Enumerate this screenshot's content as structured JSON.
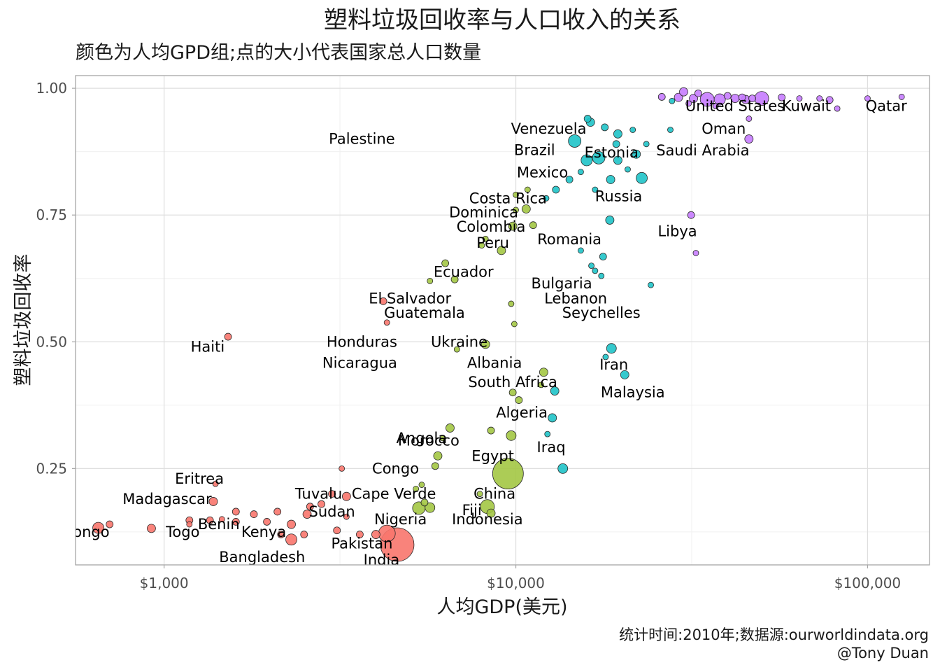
{
  "chart_data": {
    "type": "scatter",
    "title": "塑料垃圾回收率与人口收入的关系",
    "subtitle": "颜色为人均GPD组;点的大小代表国家总人口数量",
    "xlabel": "人均GDP(美元)",
    "ylabel": "塑料垃圾回收率",
    "x_scale": "log10",
    "xlim": [
      560,
      150000
    ],
    "ylim": [
      0.06,
      1.025
    ],
    "x_ticks": [
      {
        "value": 1000,
        "label": "$1,000"
      },
      {
        "value": 10000,
        "label": "$10,000"
      },
      {
        "value": 100000,
        "label": "$100,000"
      }
    ],
    "y_ticks": [
      {
        "value": 0.25,
        "label": "0.25"
      },
      {
        "value": 0.5,
        "label": "0.50"
      },
      {
        "value": 0.75,
        "label": "0.75"
      },
      {
        "value": 1.0,
        "label": "1.00"
      }
    ],
    "grid": true,
    "legend": "none",
    "group_colors": {
      "low": "#f8766d",
      "lower-middle": "#a3c644",
      "upper-middle": "#1fc3c8",
      "high": "#c77cff"
    },
    "labels": [
      {
        "text": "Qatar",
        "x": 113000,
        "y": 0.965
      },
      {
        "text": "Kuwait",
        "x": 67000,
        "y": 0.965
      },
      {
        "text": "United States",
        "x": 42000,
        "y": 0.965
      },
      {
        "text": "Oman",
        "x": 39000,
        "y": 0.92
      },
      {
        "text": "Saudi Arabia",
        "x": 34000,
        "y": 0.877
      },
      {
        "text": "Venezuela",
        "x": 12400,
        "y": 0.92
      },
      {
        "text": "Palestine",
        "x": 3650,
        "y": 0.9
      },
      {
        "text": "Brazil",
        "x": 11300,
        "y": 0.878
      },
      {
        "text": "Estonia",
        "x": 18700,
        "y": 0.873
      },
      {
        "text": "Mexico",
        "x": 11900,
        "y": 0.834
      },
      {
        "text": "Russia",
        "x": 19600,
        "y": 0.787
      },
      {
        "text": "Costa Rica",
        "x": 9500,
        "y": 0.783
      },
      {
        "text": "Dominica",
        "x": 8100,
        "y": 0.755
      },
      {
        "text": "Colombia",
        "x": 8500,
        "y": 0.727
      },
      {
        "text": "Libya",
        "x": 28800,
        "y": 0.718
      },
      {
        "text": "Romania",
        "x": 14200,
        "y": 0.702
      },
      {
        "text": "Peru",
        "x": 8600,
        "y": 0.695
      },
      {
        "text": "Ecuador",
        "x": 7100,
        "y": 0.638
      },
      {
        "text": "Bulgaria",
        "x": 13500,
        "y": 0.615
      },
      {
        "text": "El Salvador",
        "x": 5000,
        "y": 0.585
      },
      {
        "text": "Lebanon",
        "x": 14800,
        "y": 0.585
      },
      {
        "text": "Guatemala",
        "x": 5500,
        "y": 0.557
      },
      {
        "text": "Seychelles",
        "x": 17500,
        "y": 0.557
      },
      {
        "text": "Honduras",
        "x": 3650,
        "y": 0.5
      },
      {
        "text": "Nicaragua",
        "x": 3600,
        "y": 0.458
      },
      {
        "text": "Albania",
        "x": 8700,
        "y": 0.458
      },
      {
        "text": "Haiti",
        "x": 1330,
        "y": 0.49
      },
      {
        "text": "Ukraine",
        "x": 6900,
        "y": 0.5
      },
      {
        "text": "Iran",
        "x": 19000,
        "y": 0.455
      },
      {
        "text": "South Africa",
        "x": 9800,
        "y": 0.42
      },
      {
        "text": "Malaysia",
        "x": 21500,
        "y": 0.4
      },
      {
        "text": "Algeria",
        "x": 10400,
        "y": 0.36
      },
      {
        "text": "Iraq",
        "x": 12600,
        "y": 0.292
      },
      {
        "text": "Morocco",
        "x": 5650,
        "y": 0.305
      },
      {
        "text": "Egypt",
        "x": 8600,
        "y": 0.275
      },
      {
        "text": "Angola",
        "x": 5400,
        "y": 0.31
      },
      {
        "text": "Tuvalu",
        "x": 2750,
        "y": 0.2
      },
      {
        "text": "Cape Verde",
        "x": 4500,
        "y": 0.2
      },
      {
        "text": "China",
        "x": 8700,
        "y": 0.2
      },
      {
        "text": "Eritrea",
        "x": 1260,
        "y": 0.23
      },
      {
        "text": "Congo",
        "x": 4550,
        "y": 0.25
      },
      {
        "text": "Fiji",
        "x": 7500,
        "y": 0.168
      },
      {
        "text": "Madagascar",
        "x": 1020,
        "y": 0.19
      },
      {
        "text": "Sudan",
        "x": 3000,
        "y": 0.165
      },
      {
        "text": "Nigeria",
        "x": 4700,
        "y": 0.15
      },
      {
        "text": "Indonesia",
        "x": 8300,
        "y": 0.15
      },
      {
        "text": "Benin",
        "x": 1430,
        "y": 0.14
      },
      {
        "text": "Kenya",
        "x": 1920,
        "y": 0.125
      },
      {
        "text": "Congo",
        "x": 600,
        "y": 0.125
      },
      {
        "text": "Togo",
        "x": 1130,
        "y": 0.125
      },
      {
        "text": "Pakistan",
        "x": 3650,
        "y": 0.102
      },
      {
        "text": "Bangladesh",
        "x": 1900,
        "y": 0.075
      },
      {
        "text": "India",
        "x": 4150,
        "y": 0.07
      }
    ],
    "series": [
      {
        "group": "low",
        "points": [
          [
            4600,
            0.1,
            24
          ],
          [
            4300,
            0.122,
            12
          ],
          [
            4000,
            0.12,
            6
          ],
          [
            650,
            0.133,
            8
          ],
          [
            700,
            0.14,
            5
          ],
          [
            920,
            0.132,
            6
          ],
          [
            1180,
            0.148,
            5
          ],
          [
            1180,
            0.14,
            4
          ],
          [
            1350,
            0.148,
            5
          ],
          [
            1460,
            0.15,
            4
          ],
          [
            1600,
            0.145,
            5
          ],
          [
            1380,
            0.185,
            6
          ],
          [
            1400,
            0.22,
            4
          ],
          [
            1600,
            0.165,
            5
          ],
          [
            1800,
            0.16,
            5
          ],
          [
            2100,
            0.165,
            5
          ],
          [
            2300,
            0.14,
            6
          ],
          [
            2300,
            0.11,
            8
          ],
          [
            2500,
            0.12,
            5
          ],
          [
            2150,
            0.12,
            5
          ],
          [
            1960,
            0.145,
            5
          ],
          [
            2550,
            0.16,
            6
          ],
          [
            2600,
            0.175,
            5
          ],
          [
            2800,
            0.18,
            5
          ],
          [
            3000,
            0.2,
            5
          ],
          [
            3300,
            0.195,
            6
          ],
          [
            3300,
            0.155,
            4
          ],
          [
            3100,
            0.128,
            5
          ],
          [
            3600,
            0.12,
            5
          ],
          [
            4200,
            0.58,
            5
          ],
          [
            4300,
            0.538,
            4
          ],
          [
            1520,
            0.51,
            5
          ],
          [
            3200,
            0.25,
            4
          ]
        ]
      },
      {
        "group": "lower-middle",
        "points": [
          [
            9500,
            0.24,
            22
          ],
          [
            5300,
            0.172,
            9
          ],
          [
            5700,
            0.173,
            7
          ],
          [
            8300,
            0.175,
            10
          ],
          [
            8500,
            0.162,
            6
          ],
          [
            5500,
            0.183,
            5
          ],
          [
            7900,
            0.2,
            4
          ],
          [
            5200,
            0.21,
            4
          ],
          [
            5400,
            0.218,
            4
          ],
          [
            5900,
            0.255,
            5
          ],
          [
            6000,
            0.275,
            6
          ],
          [
            6200,
            0.31,
            4
          ],
          [
            6500,
            0.33,
            6
          ],
          [
            8500,
            0.325,
            5
          ],
          [
            9700,
            0.315,
            7
          ],
          [
            9800,
            0.4,
            5
          ],
          [
            10200,
            0.385,
            5
          ],
          [
            12000,
            0.44,
            6
          ],
          [
            11800,
            0.415,
            4
          ],
          [
            8200,
            0.495,
            6
          ],
          [
            6800,
            0.485,
            4
          ],
          [
            9700,
            0.575,
            4
          ],
          [
            9900,
            0.535,
            4
          ],
          [
            6700,
            0.623,
            5
          ],
          [
            6300,
            0.655,
            5
          ],
          [
            5700,
            0.62,
            4
          ],
          [
            9100,
            0.68,
            6
          ],
          [
            8000,
            0.69,
            4
          ],
          [
            8200,
            0.703,
            4
          ],
          [
            9800,
            0.728,
            6
          ],
          [
            11200,
            0.73,
            5
          ],
          [
            10700,
            0.762,
            6
          ],
          [
            10000,
            0.76,
            4
          ],
          [
            10000,
            0.79,
            4
          ],
          [
            10800,
            0.8,
            4
          ]
        ]
      },
      {
        "group": "upper-middle",
        "points": [
          [
            13600,
            0.25,
            7
          ],
          [
            12700,
            0.35,
            6
          ],
          [
            12300,
            0.318,
            4
          ],
          [
            12900,
            0.403,
            6
          ],
          [
            20400,
            0.435,
            6
          ],
          [
            18700,
            0.487,
            7
          ],
          [
            18000,
            0.47,
            4
          ],
          [
            24200,
            0.612,
            4
          ],
          [
            16800,
            0.64,
            4
          ],
          [
            16400,
            0.65,
            4
          ],
          [
            17700,
            0.668,
            5
          ],
          [
            15300,
            0.68,
            4
          ],
          [
            17500,
            0.63,
            4
          ],
          [
            18500,
            0.74,
            6
          ],
          [
            22800,
            0.823,
            8
          ],
          [
            18600,
            0.82,
            6
          ],
          [
            16800,
            0.8,
            4
          ],
          [
            14200,
            0.82,
            5
          ],
          [
            13000,
            0.8,
            5
          ],
          [
            12200,
            0.783,
            4
          ],
          [
            15300,
            0.835,
            4
          ],
          [
            17200,
            0.863,
            9
          ],
          [
            19500,
            0.858,
            6
          ],
          [
            22000,
            0.87,
            6
          ],
          [
            20800,
            0.84,
            4
          ],
          [
            23500,
            0.89,
            4
          ],
          [
            19300,
            0.89,
            5
          ],
          [
            21500,
            0.918,
            4
          ],
          [
            17900,
            0.923,
            5
          ],
          [
            19500,
            0.91,
            6
          ],
          [
            16300,
            0.933,
            6
          ],
          [
            16000,
            0.94,
            5
          ],
          [
            14700,
            0.896,
            9
          ],
          [
            15900,
            0.858,
            8
          ],
          [
            27500,
            0.918,
            4
          ],
          [
            27800,
            0.975,
            4
          ]
        ]
      },
      {
        "group": "high",
        "points": [
          [
            50000,
            0.98,
            10
          ],
          [
            38000,
            0.978,
            8
          ],
          [
            35000,
            0.978,
            10
          ],
          [
            42000,
            0.98,
            6
          ],
          [
            45000,
            0.978,
            6
          ],
          [
            32000,
            0.98,
            6
          ],
          [
            29000,
            0.982,
            6
          ],
          [
            26000,
            0.983,
            5
          ],
          [
            30000,
            0.993,
            6
          ],
          [
            33000,
            0.99,
            5
          ],
          [
            40000,
            0.985,
            5
          ],
          [
            44000,
            0.982,
            5
          ],
          [
            47000,
            0.98,
            5
          ],
          [
            57000,
            0.982,
            5
          ],
          [
            64000,
            0.98,
            4
          ],
          [
            73000,
            0.98,
            4
          ],
          [
            78000,
            0.977,
            5
          ],
          [
            100000,
            0.98,
            4
          ],
          [
            125000,
            0.983,
            4
          ],
          [
            82000,
            0.96,
            4
          ],
          [
            37000,
            0.965,
            4
          ],
          [
            31000,
            0.97,
            4
          ],
          [
            46000,
            0.94,
            4
          ],
          [
            46000,
            0.9,
            6
          ],
          [
            31500,
            0.75,
            5
          ],
          [
            32500,
            0.675,
            4
          ]
        ]
      }
    ],
    "caption_lines": [
      "统计时间:2010年;数据源:ourworldindata.org",
      "@Tony Duan"
    ]
  }
}
